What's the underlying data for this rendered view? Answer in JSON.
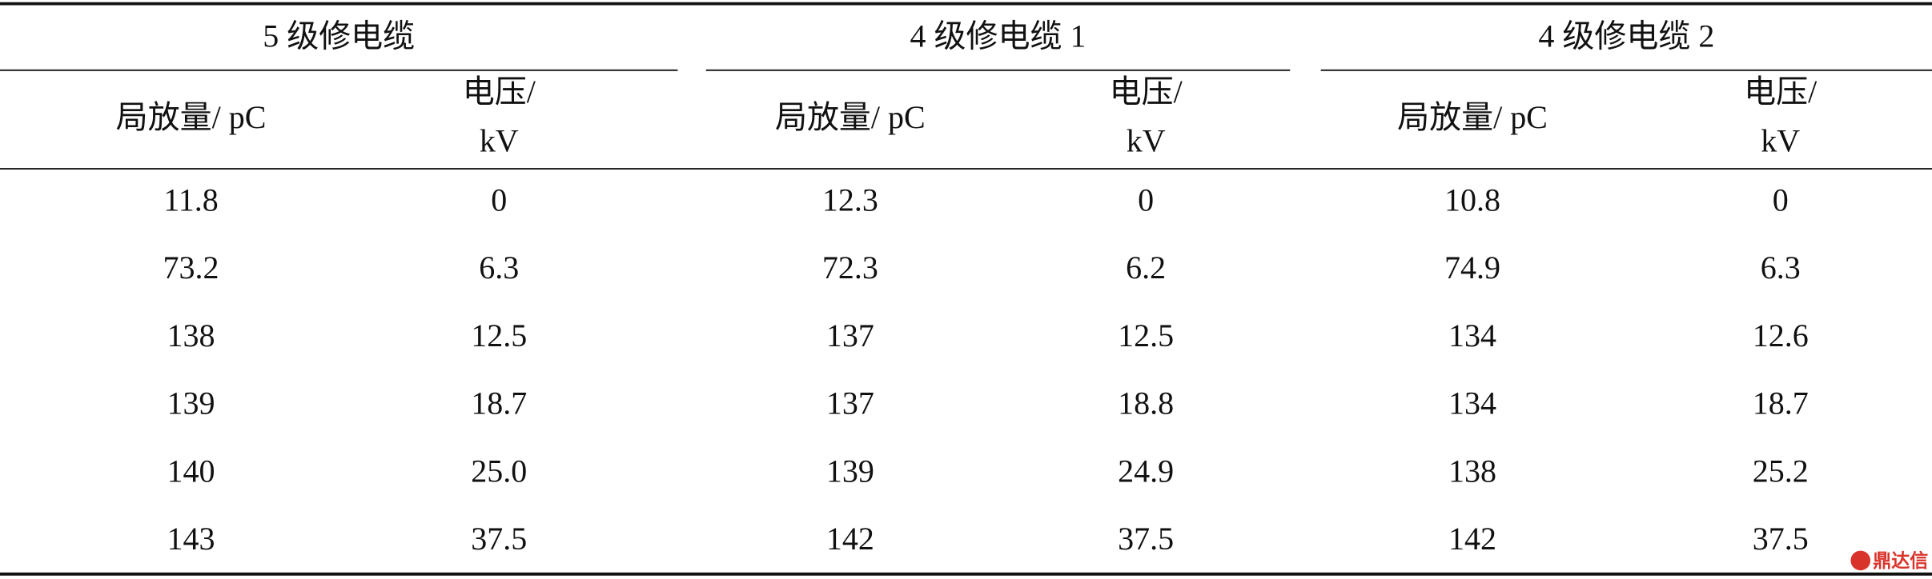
{
  "table": {
    "groups": [
      {
        "title": "5 级修电缆",
        "pd_header": "局放量/ pC",
        "voltage_header": [
          "电压/",
          "kV"
        ]
      },
      {
        "title": "4 级修电缆 1",
        "pd_header": "局放量/ pC",
        "voltage_header": [
          "电压/",
          "kV"
        ]
      },
      {
        "title": "4 级修电缆 2",
        "pd_header": "局放量/ pC",
        "voltage_header": [
          "电压/",
          "kV"
        ]
      }
    ],
    "rows": [
      [
        "11.8",
        "0",
        "12.3",
        "0",
        "10.8",
        "0"
      ],
      [
        "73.2",
        "6.3",
        "72.3",
        "6.2",
        "74.9",
        "6.3"
      ],
      [
        "138",
        "12.5",
        "137",
        "12.5",
        "134",
        "12.6"
      ],
      [
        "139",
        "18.7",
        "137",
        "18.8",
        "134",
        "18.7"
      ],
      [
        "140",
        "25.0",
        "139",
        "24.9",
        "138",
        "25.2"
      ],
      [
        "143",
        "37.5",
        "142",
        "37.5",
        "142",
        "37.5"
      ]
    ]
  },
  "watermark": "鼎达信"
}
